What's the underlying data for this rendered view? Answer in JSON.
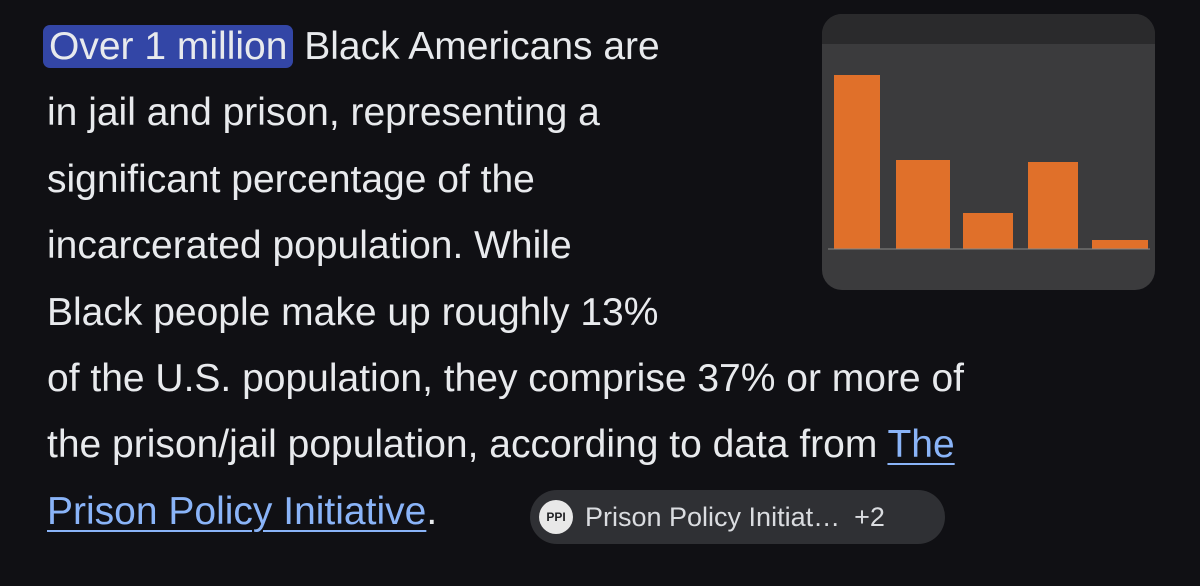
{
  "paragraph": [
    [
      {
        "text": "Over 1 million",
        "highlight": true
      },
      {
        "text": " Black Americans are"
      }
    ],
    [
      {
        "text": "in jail and prison, representing a"
      }
    ],
    [
      {
        "text": "significant percentage of the"
      }
    ],
    [
      {
        "text": "incarcerated population. While"
      }
    ],
    [
      {
        "text": "Black people make up roughly 13%"
      }
    ],
    [
      {
        "text": "of the U.S. population, they comprise 37% or more of"
      }
    ],
    [
      {
        "text": "the prison/jail population, according to data from "
      },
      {
        "text": "The",
        "link": true
      }
    ],
    [
      {
        "text": "Prison Policy Initiative",
        "link": true
      },
      {
        "text": "."
      }
    ]
  ],
  "source_chip": {
    "logo": "PPI",
    "label": "Prison Policy Initiat…",
    "count": "+2"
  }
}
